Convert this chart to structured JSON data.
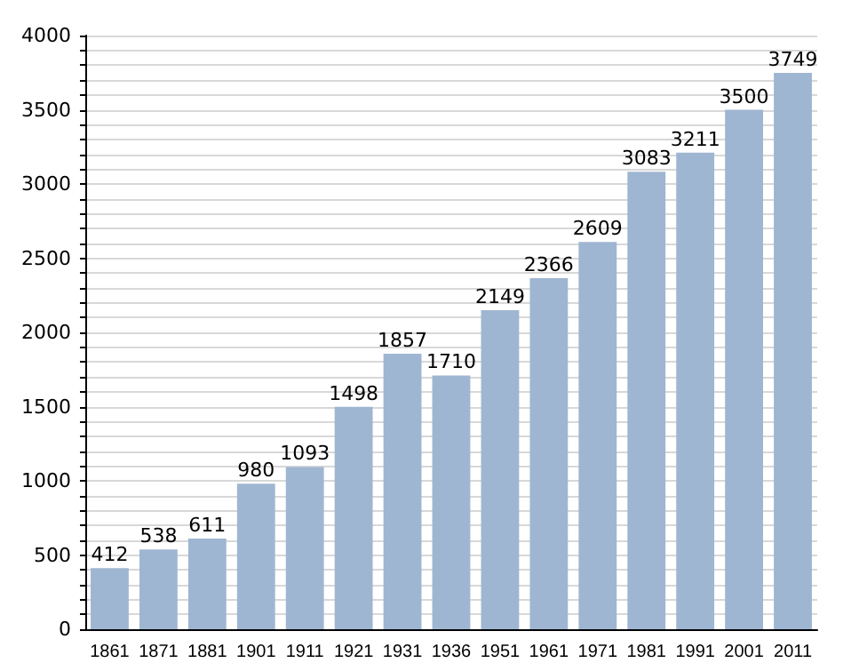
{
  "chart_data": {
    "type": "bar",
    "categories": [
      "1861",
      "1871",
      "1881",
      "1901",
      "1911",
      "1921",
      "1931",
      "1936",
      "1951",
      "1961",
      "1971",
      "1981",
      "1991",
      "2001",
      "2011"
    ],
    "values": [
      412,
      538,
      611,
      980,
      1093,
      1498,
      1857,
      1710,
      2149,
      2366,
      2609,
      3083,
      3211,
      3500,
      3749
    ],
    "color": "#9fb6d2",
    "ylim": [
      0,
      4000
    ],
    "yticks": [
      0,
      {
        "value": 100,
        "label": null
      },
      {
        "value": 200,
        "label": null
      },
      {
        "value": 300,
        "label": null
      },
      {
        "value": 400,
        "label": null
      },
      500,
      {
        "value": 600,
        "label": null
      },
      {
        "value": 700,
        "label": null
      },
      {
        "value": 800,
        "label": null
      },
      {
        "value": 900,
        "label": null
      },
      1000,
      {
        "value": 1100,
        "label": null
      },
      {
        "value": 1200,
        "label": null
      },
      {
        "value": 1300,
        "label": null
      },
      {
        "value": 1400,
        "label": null
      },
      1500,
      {
        "value": 1600,
        "label": null
      },
      {
        "value": 1700,
        "label": null
      },
      {
        "value": 1800,
        "label": null
      },
      {
        "value": 1900,
        "label": null
      },
      2000,
      {
        "value": 2100,
        "label": null
      },
      {
        "value": 2200,
        "label": null
      },
      {
        "value": 2300,
        "label": null
      },
      {
        "value": 2400,
        "label": null
      },
      2500,
      {
        "value": 2600,
        "label": null
      },
      {
        "value": 2700,
        "label": null
      },
      {
        "value": 2800,
        "label": null
      },
      {
        "value": 2900,
        "label": null
      },
      3000,
      {
        "value": 3100,
        "label": null
      },
      {
        "value": 3200,
        "label": null
      },
      {
        "value": 3300,
        "label": null
      },
      {
        "value": 3400,
        "label": null
      },
      3500,
      {
        "value": 3600,
        "label": null
      },
      {
        "value": 3700,
        "label": null
      },
      {
        "value": 3800,
        "label": null
      },
      {
        "value": 3900,
        "label": null
      },
      4000
    ],
    "grid": true,
    "data_labels": true
  }
}
